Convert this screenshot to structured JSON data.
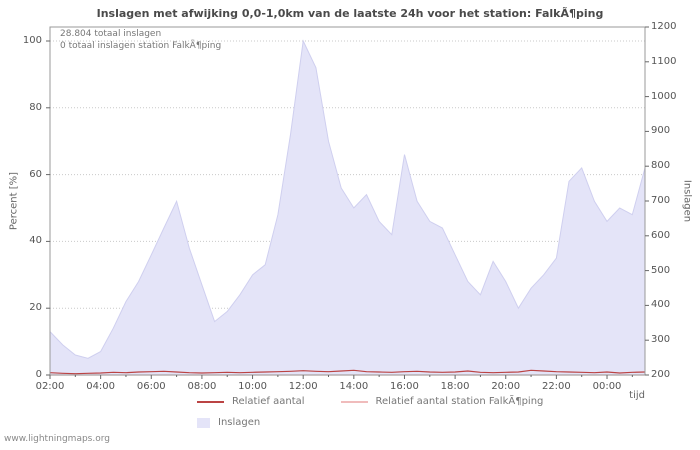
{
  "watermark": "www.lightningmaps.org",
  "annotations": {
    "total": "28.804 totaal inslagen",
    "station_total": "0 totaal inslagen station FalkÃ¶ping"
  },
  "chart_data": {
    "type": "area",
    "title": "Inslagen met afwijking 0,0-1,0km van de laatste 24h voor het station: FalkÃ¶ping",
    "xlabel": "tijd",
    "ylabel_left": "Percent [%]",
    "ylabel_right": "Inslagen",
    "ylim_left": [
      0,
      100
    ],
    "ylim_right": [
      200,
      1200
    ],
    "y_ticks_left": [
      0,
      20,
      40,
      60,
      80,
      100
    ],
    "y_ticks_right": [
      200,
      300,
      400,
      500,
      600,
      700,
      800,
      900,
      1000,
      1100,
      1200
    ],
    "x_ticks": [
      "02:00",
      "04:00",
      "06:00",
      "08:00",
      "10:00",
      "12:00",
      "14:00",
      "16:00",
      "18:00",
      "20:00",
      "22:00",
      "00:00"
    ],
    "x": [
      "02:00",
      "02:30",
      "03:00",
      "03:30",
      "04:00",
      "04:30",
      "05:00",
      "05:30",
      "06:00",
      "06:30",
      "07:00",
      "07:30",
      "08:00",
      "08:30",
      "09:00",
      "09:30",
      "10:00",
      "10:30",
      "11:00",
      "11:30",
      "12:00",
      "12:30",
      "13:00",
      "13:30",
      "14:00",
      "14:30",
      "15:00",
      "15:30",
      "16:00",
      "16:30",
      "17:00",
      "17:30",
      "18:00",
      "18:30",
      "19:00",
      "19:30",
      "20:00",
      "20:30",
      "21:00",
      "21:30",
      "22:00",
      "22:30",
      "23:00",
      "23:30",
      "00:00",
      "00:30",
      "01:00",
      "01:30"
    ],
    "grid": "horizontal-dotted",
    "legend_position": "bottom",
    "series": [
      {
        "name": "Inslagen",
        "type": "area",
        "axis": "left",
        "units": "percent_of_max",
        "color": "#e4e4f8",
        "edge_color": "#cfcfef",
        "values": [
          13,
          9,
          6,
          5,
          7,
          14,
          22,
          28,
          36,
          44,
          52,
          38,
          27,
          16,
          19,
          24,
          30,
          33,
          48,
          72,
          100,
          92,
          70,
          56,
          50,
          54,
          46,
          42,
          66,
          52,
          46,
          44,
          36,
          28,
          24,
          34,
          28,
          20,
          26,
          30,
          35,
          58,
          62,
          52,
          46,
          50,
          48,
          62
        ]
      },
      {
        "name": "Relatief aantal",
        "type": "line",
        "axis": "left",
        "units": "percent",
        "color": "#bb4444",
        "values": [
          0.7,
          0.5,
          0.4,
          0.5,
          0.6,
          0.8,
          0.7,
          0.9,
          1.0,
          1.1,
          0.9,
          0.7,
          0.6,
          0.7,
          0.8,
          0.7,
          0.8,
          0.9,
          1.0,
          1.1,
          1.3,
          1.1,
          1.0,
          1.2,
          1.4,
          1.0,
          0.9,
          0.8,
          1.0,
          1.1,
          0.9,
          0.8,
          0.9,
          1.2,
          0.8,
          0.7,
          0.8,
          0.9,
          1.4,
          1.2,
          1.0,
          0.9,
          0.8,
          0.7,
          0.9,
          0.6,
          0.8,
          0.9
        ]
      },
      {
        "name": "Relatief aantal station FalkÃ¶ping",
        "type": "line",
        "axis": "left",
        "units": "percent",
        "color": "#f0bcbc",
        "values": [
          0,
          0,
          0,
          0,
          0,
          0,
          0,
          0,
          0,
          0,
          0,
          0,
          0,
          0,
          0,
          0,
          0,
          0,
          0,
          0,
          0,
          0,
          0,
          0,
          0,
          0,
          0,
          0,
          0,
          0,
          0,
          0,
          0,
          0,
          0,
          0,
          0,
          0,
          0,
          0,
          0,
          0,
          0,
          0,
          0,
          0,
          0,
          0
        ]
      }
    ],
    "legend": {
      "rows": [
        [
          {
            "label": "Relatief aantal",
            "color": "#bb4444",
            "marker": "line"
          },
          {
            "label": "Relatief aantal station FalkÃ¶ping",
            "color": "#f0bcbc",
            "marker": "line"
          }
        ],
        [
          {
            "label": "Inslagen",
            "color": "#e4e4f8",
            "marker": "area"
          }
        ]
      ]
    }
  }
}
